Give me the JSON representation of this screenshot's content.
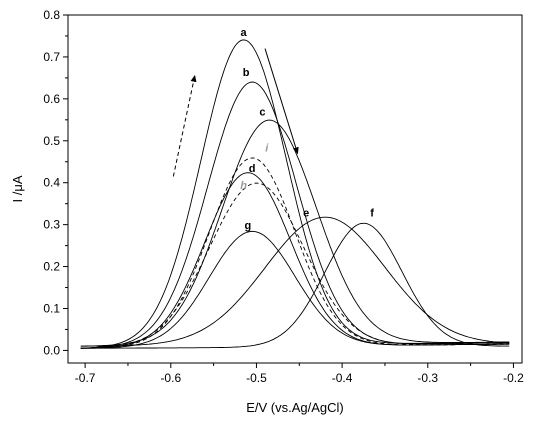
{
  "chart_data": {
    "type": "line",
    "title": "",
    "xlabel": "E/V (vs.Ag/AgCl)",
    "ylabel": "I /μA",
    "xlim": [
      -0.72,
      -0.19
    ],
    "ylim": [
      -0.03,
      0.8
    ],
    "xticks": [
      -0.7,
      -0.6,
      -0.5,
      -0.4,
      -0.3,
      -0.2
    ],
    "xtick_labels": [
      "-0.7",
      "-0.6",
      "-0.5",
      "-0.4",
      "-0.3",
      "-0.2"
    ],
    "yticks": [
      0.0,
      0.1,
      0.2,
      0.3,
      0.4,
      0.5,
      0.6,
      0.7,
      0.8
    ],
    "ytick_labels": [
      "0.0",
      "0.1",
      "0.2",
      "0.3",
      "0.4",
      "0.5",
      "0.6",
      "0.7",
      "0.8"
    ],
    "grid": false,
    "legend": "none",
    "series": [
      {
        "label": "a",
        "style": "solid",
        "color": "#000000",
        "peak_x": -0.515,
        "peak_y": 0.73,
        "width": 0.05,
        "base_start": 0.005,
        "base_end": 0.02
      },
      {
        "label": "b",
        "style": "solid",
        "color": "#000000",
        "peak_x": -0.505,
        "peak_y": 0.63,
        "width": 0.052,
        "base_start": 0.005,
        "base_end": 0.018
      },
      {
        "label": "c",
        "style": "solid",
        "color": "#000000",
        "peak_x": -0.485,
        "peak_y": 0.535,
        "width": 0.055,
        "base_start": 0.01,
        "base_end": 0.02
      },
      {
        "label": "i",
        "style": "dashed",
        "color": "#000000",
        "peak_x": -0.505,
        "peak_y": 0.45,
        "width": 0.05,
        "base_start": 0.005,
        "base_end": 0.015
      },
      {
        "label": "d",
        "style": "solid",
        "color": "#000000",
        "peak_x": -0.51,
        "peak_y": 0.415,
        "width": 0.05,
        "base_start": 0.005,
        "base_end": 0.015
      },
      {
        "label": "h",
        "style": "dashed",
        "color": "#000000",
        "peak_x": -0.5,
        "peak_y": 0.39,
        "width": 0.055,
        "base_start": 0.005,
        "base_end": 0.015
      },
      {
        "label": "e",
        "style": "solid",
        "color": "#000000",
        "peak_x": -0.42,
        "peak_y": 0.305,
        "width": 0.07,
        "base_start": 0.01,
        "base_end": 0.015
      },
      {
        "label": "f",
        "style": "solid",
        "color": "#000000",
        "peak_x": -0.375,
        "peak_y": 0.295,
        "width": 0.045,
        "base_start": 0.005,
        "base_end": 0.01
      },
      {
        "label": "g",
        "style": "solid",
        "color": "#000000",
        "peak_x": -0.505,
        "peak_y": 0.275,
        "width": 0.05,
        "base_start": 0.005,
        "base_end": 0.015
      }
    ],
    "annotations": [
      {
        "text": "a",
        "x": -0.515,
        "y": 0.75,
        "color": "#000000"
      },
      {
        "text": "b",
        "x": -0.512,
        "y": 0.655,
        "color": "#000000"
      },
      {
        "text": "c",
        "x": -0.493,
        "y": 0.56,
        "color": "#000000"
      },
      {
        "text": "i",
        "x": -0.488,
        "y": 0.475,
        "color": "#9a9a9a"
      },
      {
        "text": "d",
        "x": -0.505,
        "y": 0.425,
        "color": "#000000"
      },
      {
        "text": "h",
        "x": -0.515,
        "y": 0.385,
        "color": "#9a9a9a"
      },
      {
        "text": "e",
        "x": -0.442,
        "y": 0.32,
        "color": "#000000"
      },
      {
        "text": "f",
        "x": -0.365,
        "y": 0.32,
        "color": "#000000"
      },
      {
        "text": "g",
        "x": -0.51,
        "y": 0.29,
        "color": "#000000"
      }
    ],
    "arrows": [
      {
        "style": "dashed",
        "from": [
          -0.597,
          0.415
        ],
        "to": [
          -0.572,
          0.655
        ]
      },
      {
        "style": "solid",
        "from": [
          -0.49,
          0.72
        ],
        "to": [
          -0.452,
          0.47
        ]
      }
    ]
  }
}
